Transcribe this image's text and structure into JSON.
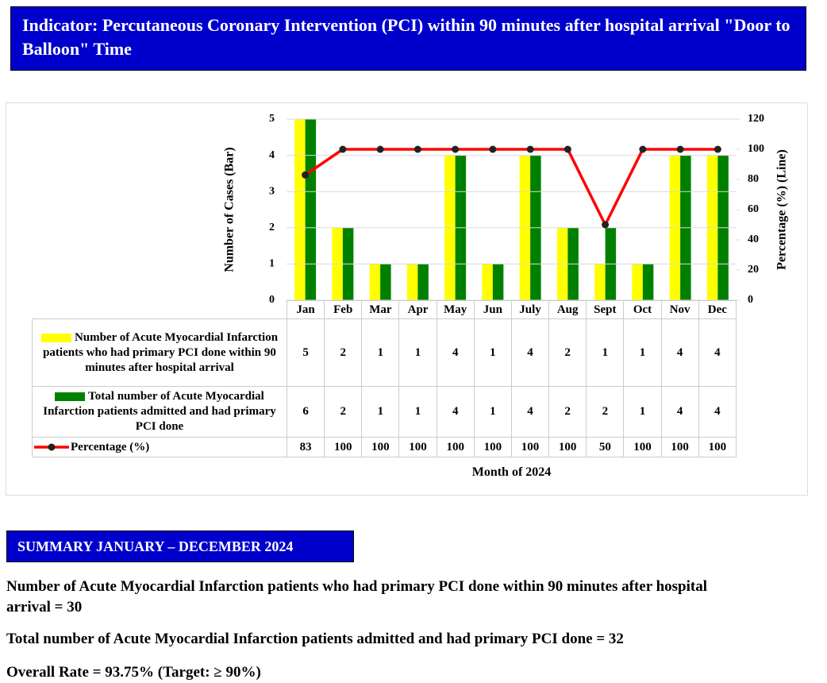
{
  "header": {
    "title": "Indicator: Percutaneous Coronary Intervention (PCI) within 90 minutes after hospital arrival \"Door to Balloon\" Time"
  },
  "chart_data": {
    "type": "bar",
    "categories": [
      "Jan",
      "Feb",
      "Mar",
      "Apr",
      "May",
      "Jun",
      "July",
      "Aug",
      "Sept",
      "Oct",
      "Nov",
      "Dec"
    ],
    "series": [
      {
        "name": "Number of Acute Myocardial Infarction patients who had primary PCI done within 90 minutes after hospital arrival",
        "color": "#ffff00",
        "values": [
          5,
          2,
          1,
          1,
          4,
          1,
          4,
          2,
          1,
          1,
          4,
          4
        ]
      },
      {
        "name": "Total number of Acute Myocardial Infarction patients admitted and had primary PCI done",
        "color": "#008000",
        "values": [
          6,
          2,
          1,
          1,
          4,
          1,
          4,
          2,
          2,
          1,
          4,
          4
        ]
      },
      {
        "name": "Percentage (%)",
        "type": "line",
        "axis": "y2",
        "color": "#ff0000",
        "values": [
          83,
          100,
          100,
          100,
          100,
          100,
          100,
          100,
          50,
          100,
          100,
          100
        ]
      }
    ],
    "ylim": [
      0,
      5
    ],
    "yticks": [
      0,
      1,
      2,
      3,
      4,
      5
    ],
    "y2lim": [
      0,
      120
    ],
    "y2ticks": [
      0,
      20,
      40,
      60,
      80,
      100,
      120
    ],
    "ylabel": "Number of Cases (Bar)",
    "y2label": "Percentage (%) (Line)",
    "xlabel": "Month of 2024",
    "grid": true
  },
  "summary": {
    "title": "SUMMARY JANUARY – DECEMBER 2024",
    "lines": [
      "Number of Acute Myocardial Infarction patients who had primary PCI done within 90 minutes after hospital arrival = 30",
      "Total number of Acute Myocardial Infarction patients admitted and had primary PCI done = 32",
      "Overall Rate = 93.75% (Target: ≥ 90%)"
    ]
  }
}
